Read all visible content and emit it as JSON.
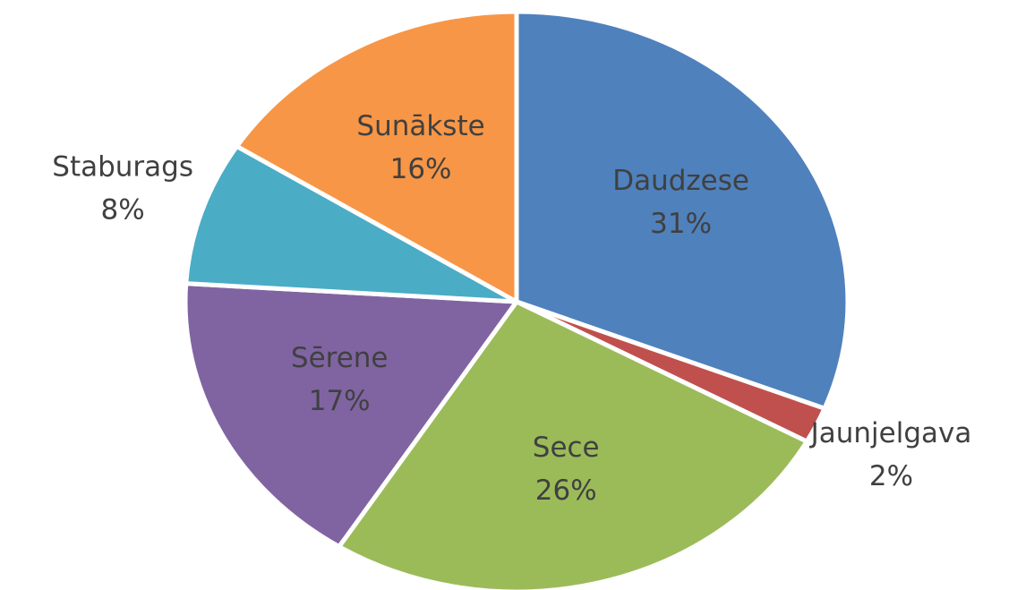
{
  "chart_data": {
    "type": "pie",
    "categories": [
      "Daudzese",
      "Jaunjelgava",
      "Sece",
      "Sērene",
      "Staburags",
      "Sunākste"
    ],
    "values": [
      31,
      2,
      26,
      17,
      8,
      16
    ],
    "value_labels": [
      "31%",
      "2%",
      "26%",
      "17%",
      "8%",
      "16%"
    ],
    "colors": [
      "#4f81bd",
      "#c0504d",
      "#9bbb59",
      "#8064a2",
      "#4bacc6",
      "#f79646"
    ]
  }
}
